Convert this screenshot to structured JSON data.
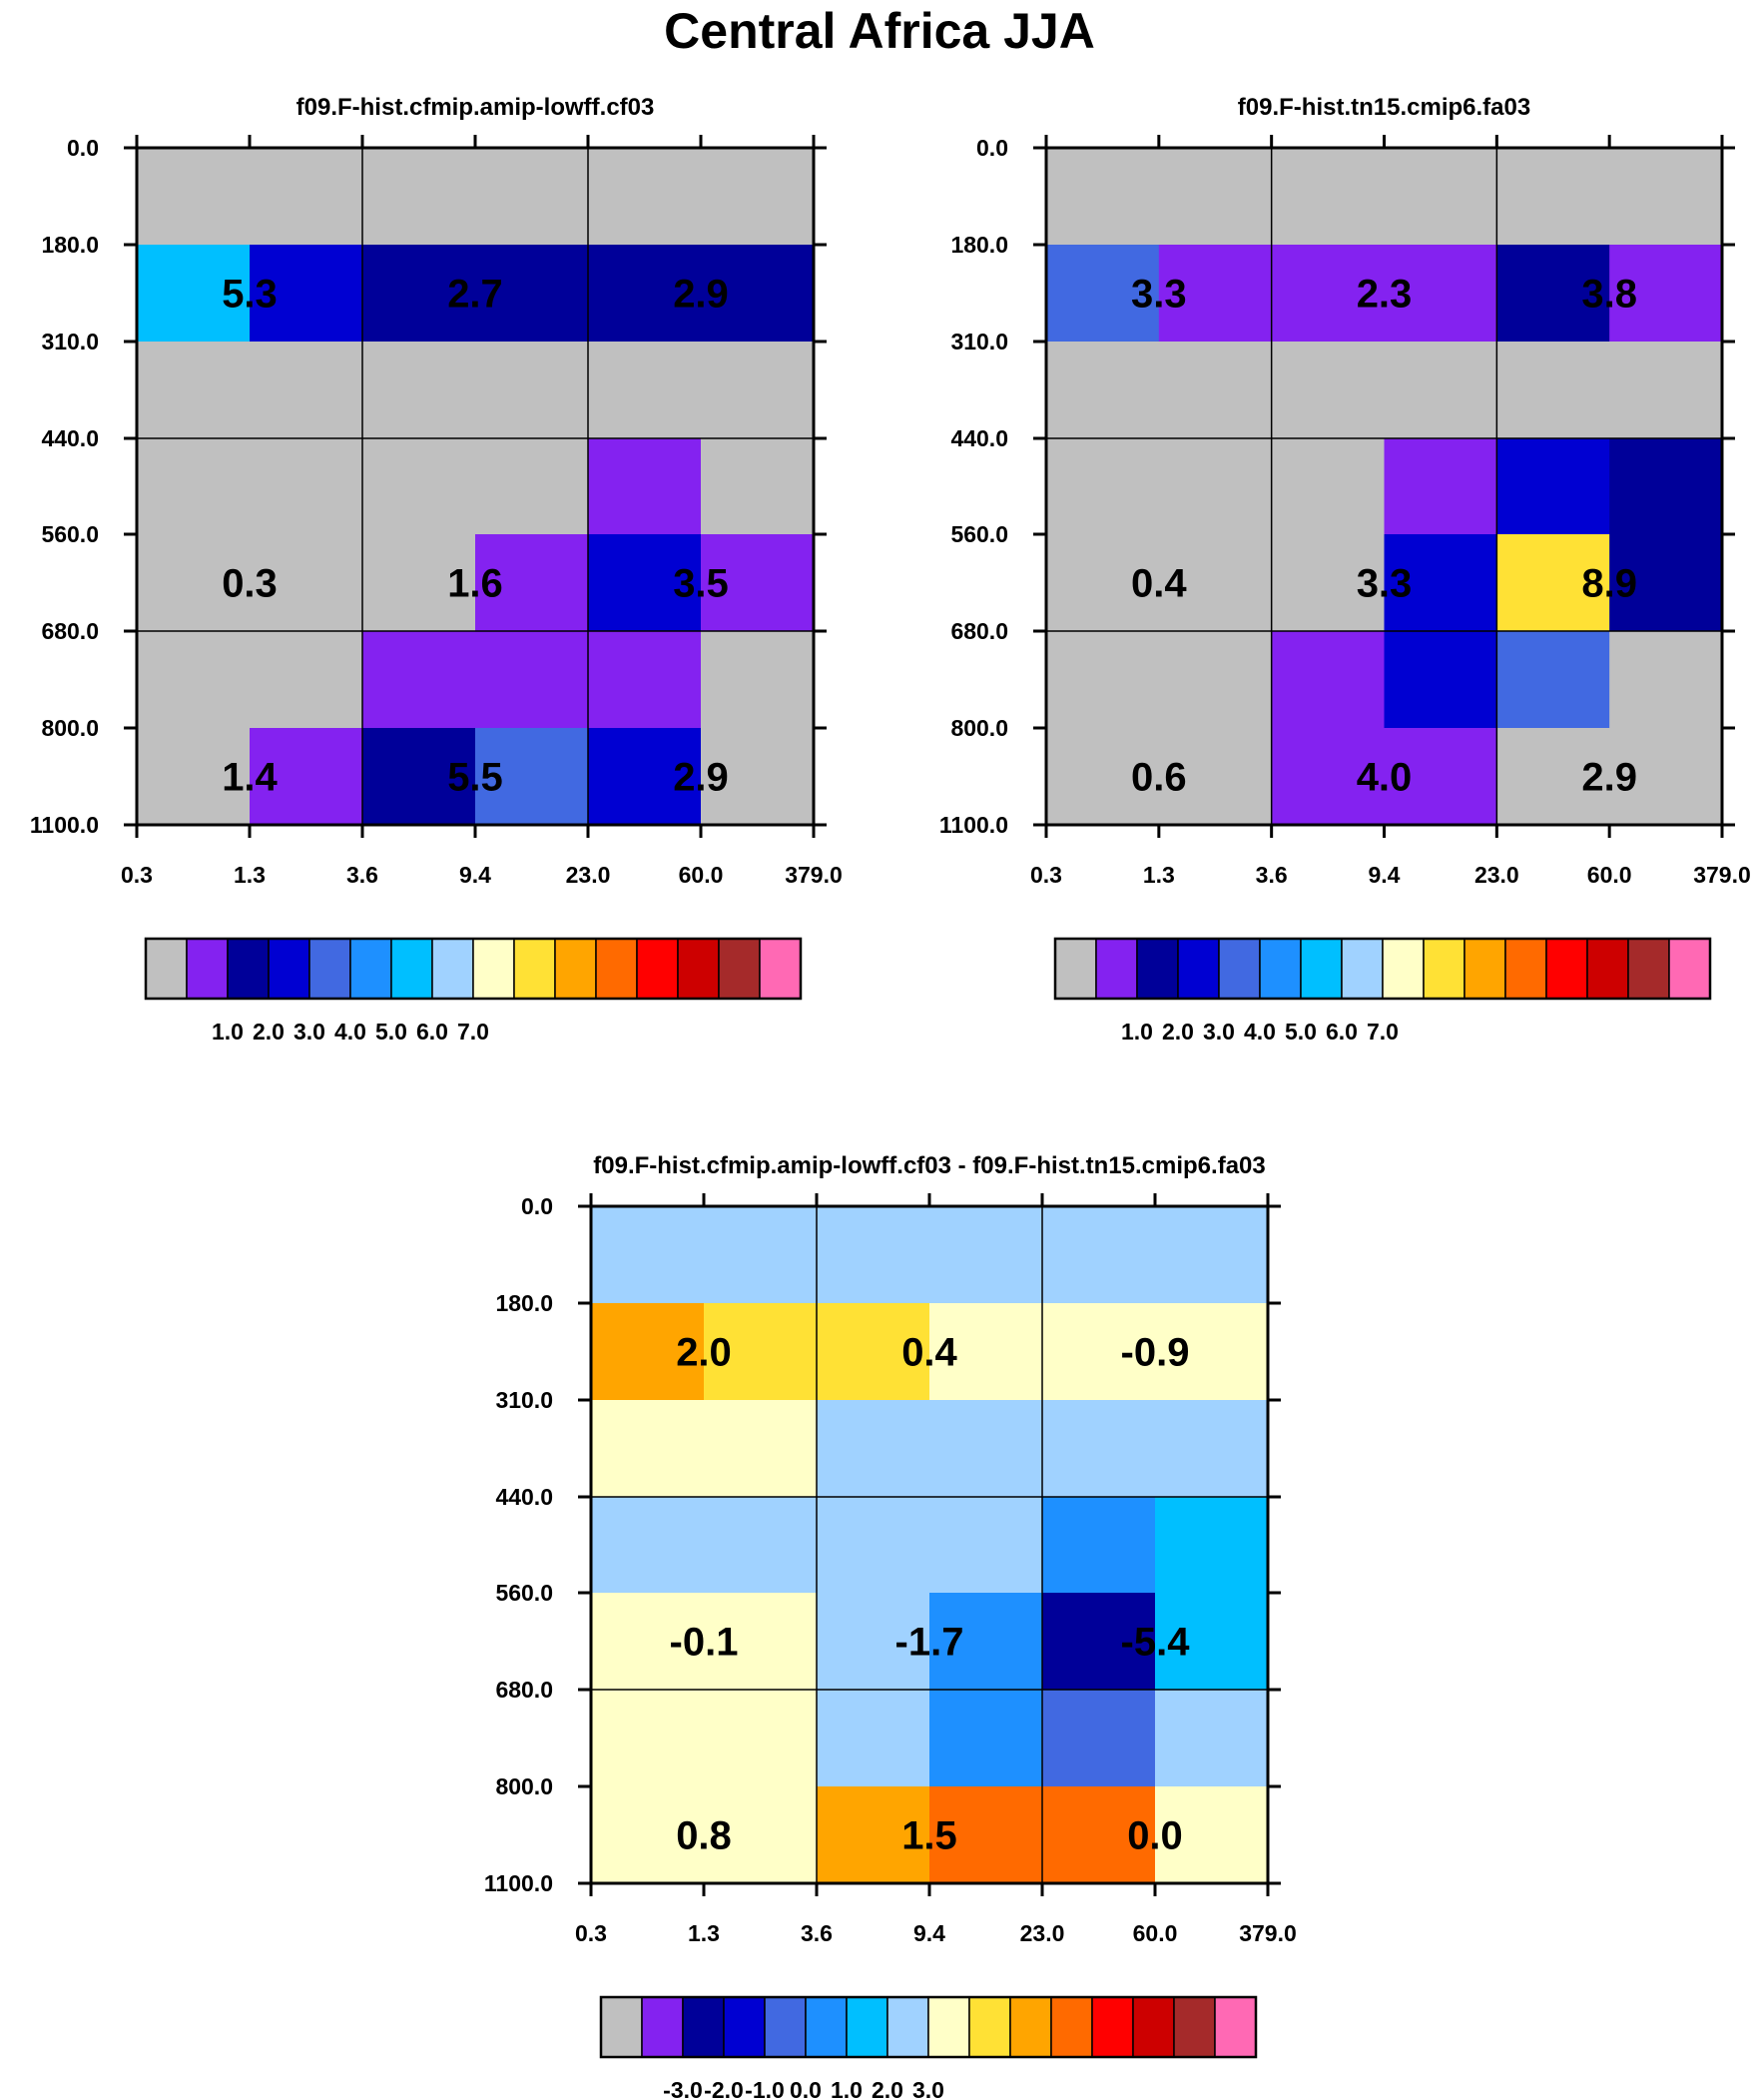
{
  "figure": {
    "title": "Central Africa JJA"
  },
  "colors": {
    "background": "#ffffff",
    "palette": [
      "#c0c0c0",
      "#8422f0",
      "#000099",
      "#0000d2",
      "#4169e1",
      "#1e90ff",
      "#00bfff",
      "#a0d2ff",
      "#ffffc8",
      "#ffe135",
      "#ffa500",
      "#ff6a00",
      "#ff0000",
      "#cd0000",
      "#a52a2a",
      "#ff69b4"
    ]
  },
  "chart_data": [
    {
      "type": "heatmap",
      "title": "f09.F-hist.cfmip.amip-lowff.cf03",
      "x_tick_labels": [
        "0.3",
        "1.3",
        "3.6",
        "9.4",
        "23.0",
        "60.0",
        "379.0"
      ],
      "y_tick_labels": [
        "0.0",
        "180.0",
        "310.0",
        "440.0",
        "560.0",
        "680.0",
        "800.0",
        "1100.0"
      ],
      "grid_x_major": [
        0,
        2,
        4,
        6
      ],
      "grid_y_major": [
        0,
        3,
        5,
        7
      ],
      "cell_color_index": [
        [
          0,
          0,
          0,
          0,
          0,
          0
        ],
        [
          6,
          3,
          2,
          2,
          2,
          2
        ],
        [
          0,
          0,
          0,
          0,
          0,
          0
        ],
        [
          0,
          0,
          0,
          0,
          1,
          0
        ],
        [
          0,
          0,
          0,
          1,
          3,
          1
        ],
        [
          0,
          0,
          1,
          1,
          1,
          0
        ],
        [
          0,
          1,
          2,
          4,
          3,
          0
        ]
      ],
      "cell_labels": [
        {
          "row": 0,
          "col": 0,
          "text": "5.3"
        },
        {
          "row": 0,
          "col": 1,
          "text": "2.7"
        },
        {
          "row": 0,
          "col": 2,
          "text": "2.9"
        },
        {
          "row": 1,
          "col": 0,
          "text": "0.3"
        },
        {
          "row": 1,
          "col": 1,
          "text": "1.6"
        },
        {
          "row": 1,
          "col": 2,
          "text": "3.5"
        },
        {
          "row": 2,
          "col": 0,
          "text": "1.4"
        },
        {
          "row": 2,
          "col": 1,
          "text": "5.5"
        },
        {
          "row": 2,
          "col": 2,
          "text": "2.9"
        }
      ],
      "colorbar": {
        "labels": [
          "1.0",
          "2.0",
          "3.0",
          "4.0",
          "5.0",
          "6.0",
          "7.0"
        ],
        "label_start_boundary": 2
      }
    },
    {
      "type": "heatmap",
      "title": "f09.F-hist.tn15.cmip6.fa03",
      "x_tick_labels": [
        "0.3",
        "1.3",
        "3.6",
        "9.4",
        "23.0",
        "60.0",
        "379.0"
      ],
      "y_tick_labels": [
        "0.0",
        "180.0",
        "310.0",
        "440.0",
        "560.0",
        "680.0",
        "800.0",
        "1100.0"
      ],
      "grid_x_major": [
        0,
        2,
        4,
        6
      ],
      "grid_y_major": [
        0,
        3,
        5,
        7
      ],
      "cell_color_index": [
        [
          0,
          0,
          0,
          0,
          0,
          0
        ],
        [
          4,
          1,
          1,
          1,
          2,
          1
        ],
        [
          0,
          0,
          0,
          0,
          0,
          0
        ],
        [
          0,
          0,
          0,
          1,
          3,
          2
        ],
        [
          0,
          0,
          0,
          3,
          9,
          2
        ],
        [
          0,
          0,
          1,
          3,
          4,
          0
        ],
        [
          0,
          0,
          1,
          1,
          0,
          0
        ]
      ],
      "cell_labels": [
        {
          "row": 0,
          "col": 0,
          "text": "3.3"
        },
        {
          "row": 0,
          "col": 1,
          "text": "2.3"
        },
        {
          "row": 0,
          "col": 2,
          "text": "3.8"
        },
        {
          "row": 1,
          "col": 0,
          "text": "0.4"
        },
        {
          "row": 1,
          "col": 1,
          "text": "3.3"
        },
        {
          "row": 1,
          "col": 2,
          "text": "8.9"
        },
        {
          "row": 2,
          "col": 0,
          "text": "0.6"
        },
        {
          "row": 2,
          "col": 1,
          "text": "4.0"
        },
        {
          "row": 2,
          "col": 2,
          "text": "2.9"
        }
      ],
      "colorbar": {
        "labels": [
          "1.0",
          "2.0",
          "3.0",
          "4.0",
          "5.0",
          "6.0",
          "7.0"
        ],
        "label_start_boundary": 2
      }
    },
    {
      "type": "heatmap",
      "title": "f09.F-hist.cfmip.amip-lowff.cf03 - f09.F-hist.tn15.cmip6.fa03",
      "x_tick_labels": [
        "0.3",
        "1.3",
        "3.6",
        "9.4",
        "23.0",
        "60.0",
        "379.0"
      ],
      "y_tick_labels": [
        "0.0",
        "180.0",
        "310.0",
        "440.0",
        "560.0",
        "680.0",
        "800.0",
        "1100.0"
      ],
      "grid_x_major": [
        0,
        2,
        4,
        6
      ],
      "grid_y_major": [
        0,
        3,
        5,
        7
      ],
      "cell_color_index": [
        [
          7,
          7,
          7,
          7,
          7,
          7
        ],
        [
          10,
          9,
          9,
          8,
          8,
          8
        ],
        [
          8,
          8,
          7,
          7,
          7,
          7
        ],
        [
          7,
          7,
          7,
          7,
          5,
          6
        ],
        [
          8,
          8,
          7,
          5,
          2,
          6
        ],
        [
          8,
          8,
          7,
          5,
          4,
          7
        ],
        [
          8,
          8,
          10,
          11,
          11,
          8
        ]
      ],
      "cell_labels": [
        {
          "row": 0,
          "col": 0,
          "text": "2.0"
        },
        {
          "row": 0,
          "col": 1,
          "text": "0.4"
        },
        {
          "row": 0,
          "col": 2,
          "text": "-0.9"
        },
        {
          "row": 1,
          "col": 0,
          "text": "-0.1"
        },
        {
          "row": 1,
          "col": 1,
          "text": "-1.7"
        },
        {
          "row": 1,
          "col": 2,
          "text": "-5.4"
        },
        {
          "row": 2,
          "col": 0,
          "text": "0.8"
        },
        {
          "row": 2,
          "col": 1,
          "text": "1.5"
        },
        {
          "row": 2,
          "col": 2,
          "text": "0.0"
        }
      ],
      "colorbar": {
        "labels": [
          "-3.0",
          "-2.0",
          "-1.0",
          "0.0",
          "1.0",
          "2.0",
          "3.0"
        ],
        "label_start_boundary": 2
      }
    }
  ]
}
